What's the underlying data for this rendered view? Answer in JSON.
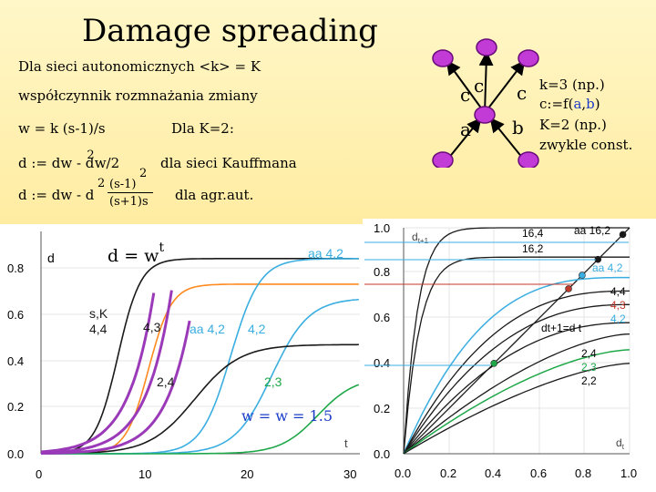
{
  "title": "Damage spreading",
  "lines": {
    "l1": "Dla sieci autonomicznych  <k> = K",
    "l2": "współczynnik rozmnażania zmiany",
    "l3": "w = k (s-1)/s",
    "l3b": "Dla K=2:",
    "l4a": "d := dw - d",
    "l4sup": "2",
    "l4b": "w/2",
    "l4c": "dla sieci Kauffmana",
    "l5a": "d := dw - d",
    "l5sup": "2",
    "l5frac_top": "(s-1)",
    "l5frac_top_sup": "2",
    "l5frac_bot": "(s+1)s",
    "l5c": "dla agr.aut."
  },
  "node_labels": {
    "left_top": "c",
    "top_c": "c",
    "right_top": "c",
    "left_bottom": "a",
    "right_bottom": "b"
  },
  "legend": {
    "r1": "k=3  (np.)",
    "r2a": "c:=f(",
    "r2b": "a",
    "r2c": ",",
    "r2d": "b",
    "r2e": ")",
    "r3": "K=2  (np.)",
    "r4": "zwykle const."
  },
  "left_chart": {
    "ylabel": "d",
    "xlabel": "t",
    "formula": "d = w",
    "formula_sup": "t",
    "yticks": [
      "0.0",
      "0.2",
      "0.4",
      "0.6",
      "0.8"
    ],
    "xticks": [
      "0",
      "10",
      "20",
      "30"
    ],
    "labels": {
      "aa42_top": "aa 4,2",
      "sk": "s,K",
      "l44": "4,4",
      "l43": "4,3",
      "aa42_mid": "aa 4,2",
      "l42": "4,2",
      "l24": "2,4",
      "l23": "2,3",
      "ww": "w = w = 1.5"
    }
  },
  "right_chart": {
    "ylabel": "d",
    "ylabel_sub": "t+1",
    "xlabel": "d",
    "xlabel_sub": "t",
    "yticks": [
      "0.0",
      "0.2",
      "0.4",
      "0.6",
      "0.8",
      "1.0"
    ],
    "xticks": [
      "0.0",
      "0.2",
      "0.4",
      "0.6",
      "0.8",
      "1.0"
    ],
    "left_yticks": [
      ".8",
      "6",
      ".4",
      "2"
    ],
    "labels": {
      "l164": "16,4",
      "l162": "16,2",
      "aa162": "aa 16,2",
      "aa42": "aa 4,2",
      "l44": "4,4",
      "l43": "4,3",
      "l42": "4,2",
      "diag": "dt+1=d t",
      "l24": "2,4",
      "l23": "2,3",
      "l22": "2,2"
    }
  },
  "colors": {
    "black": "#1a1a1a",
    "orange": "#ff8a1f",
    "blue": "#3aaee0",
    "green": "#1fa84a",
    "purple": "#9b3ab8",
    "red": "#c0392b",
    "gray": "#777777",
    "node": "#c23bd6"
  }
}
